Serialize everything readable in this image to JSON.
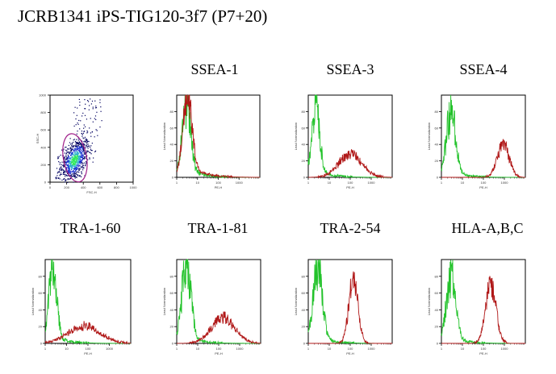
{
  "title": "JCRB1341 iPS-TIG120-3f7 (P7+20)",
  "colors": {
    "control": "#22c22a",
    "stained": "#b01818",
    "gate": "#a0208a",
    "axis": "#000000"
  },
  "chart_data": [
    {
      "type": "scatter",
      "panel": "scatter",
      "title": "",
      "xlabel": "FSC-H",
      "ylabel": "SSC-H",
      "xlim": [
        0,
        1000
      ],
      "ylim": [
        0,
        1000
      ],
      "xticks": [
        "0",
        "200",
        "400",
        "600",
        "800",
        "1000"
      ],
      "yticks": [
        "0",
        "200",
        "400",
        "600",
        "800",
        "1000"
      ],
      "grid": false,
      "center": [
        290,
        260
      ],
      "gate": {
        "center": [
          300,
          280
        ],
        "rx": 140,
        "ry": 280
      }
    },
    {
      "type": "line",
      "panel": "SSEA-1",
      "title": "SSEA-1",
      "scale": "log",
      "xlabel": "PE-H",
      "ylabel": "Lead Normalization",
      "xlim": [
        1,
        10000
      ],
      "ylim": [
        0,
        100
      ],
      "xticks": [
        "1",
        "10",
        "100",
        "1000"
      ],
      "yticks": [
        "0",
        "20",
        "40",
        "60",
        "80"
      ],
      "series": [
        {
          "role": "control",
          "peak_log": 0.45,
          "width": 0.2,
          "height": 88,
          "tail": 0.15
        },
        {
          "role": "stained",
          "peak_log": 0.5,
          "width": 0.22,
          "height": 92,
          "tail": 0.2
        }
      ]
    },
    {
      "type": "line",
      "panel": "SSEA-3",
      "title": "SSEA-3",
      "scale": "log",
      "xlabel": "PE-H",
      "ylabel": "Lead Normalization",
      "xlim": [
        1,
        10000
      ],
      "ylim": [
        0,
        100
      ],
      "xticks": [
        "1",
        "10",
        "100",
        "1000"
      ],
      "yticks": [
        "0",
        "20",
        "40",
        "60",
        "80"
      ],
      "series": [
        {
          "role": "control",
          "peak_log": 0.35,
          "width": 0.18,
          "height": 92,
          "tail": 0.1
        },
        {
          "role": "stained",
          "peak_log": 2.0,
          "width": 0.55,
          "height": 28,
          "tail": 0.05
        }
      ]
    },
    {
      "type": "line",
      "panel": "SSEA-4",
      "title": "SSEA-4",
      "scale": "log",
      "xlabel": "PE-H",
      "ylabel": "Lead Normalization",
      "xlim": [
        1,
        10000
      ],
      "ylim": [
        0,
        100
      ],
      "xticks": [
        "1",
        "10",
        "100",
        "1000"
      ],
      "yticks": [
        "0",
        "20",
        "40",
        "60",
        "80"
      ],
      "series": [
        {
          "role": "control",
          "peak_log": 0.45,
          "width": 0.22,
          "height": 78,
          "tail": 0.1
        },
        {
          "role": "stained",
          "peak_log": 2.95,
          "width": 0.28,
          "height": 40,
          "tail": 0.0
        }
      ]
    },
    {
      "type": "line",
      "panel": "TRA-1-60",
      "title": "TRA-1-60",
      "scale": "log",
      "xlabel": "PE-H",
      "ylabel": "Lead Normalization",
      "xlim": [
        1,
        10000
      ],
      "ylim": [
        0,
        100
      ],
      "xticks": [
        "1",
        "10",
        "100",
        "1000"
      ],
      "yticks": [
        "0",
        "20",
        "40",
        "60",
        "80"
      ],
      "series": [
        {
          "role": "control",
          "peak_log": 0.35,
          "width": 0.18,
          "height": 88,
          "tail": 0.1
        },
        {
          "role": "stained",
          "peak_log": 1.8,
          "width": 0.75,
          "height": 20,
          "tail": 0.1
        }
      ]
    },
    {
      "type": "line",
      "panel": "TRA-1-81",
      "title": "TRA-1-81",
      "scale": "log",
      "xlabel": "PE-H",
      "ylabel": "Lead Normalization",
      "xlim": [
        1,
        10000
      ],
      "ylim": [
        0,
        100
      ],
      "xticks": [
        "1",
        "10",
        "100",
        "1000"
      ],
      "yticks": [
        "0",
        "20",
        "40",
        "60",
        "80"
      ],
      "series": [
        {
          "role": "control",
          "peak_log": 0.45,
          "width": 0.22,
          "height": 90,
          "tail": 0.1
        },
        {
          "role": "stained",
          "peak_log": 2.2,
          "width": 0.55,
          "height": 30,
          "tail": 0.05
        }
      ]
    },
    {
      "type": "line",
      "panel": "TRA-2-54",
      "title": "TRA-2-54",
      "scale": "log",
      "xlabel": "PE-H",
      "ylabel": "Lead Normalization",
      "xlim": [
        1,
        10000
      ],
      "ylim": [
        0,
        100
      ],
      "xticks": [
        "1",
        "10",
        "100",
        "1000"
      ],
      "yticks": [
        "0",
        "20",
        "40",
        "60",
        "80"
      ],
      "series": [
        {
          "role": "control",
          "peak_log": 0.45,
          "width": 0.22,
          "height": 88,
          "tail": 0.1
        },
        {
          "role": "stained",
          "peak_log": 2.15,
          "width": 0.22,
          "height": 75,
          "tail": 0.0
        }
      ]
    },
    {
      "type": "line",
      "panel": "HLA-A,B,C",
      "title": "HLA-A,B,C",
      "scale": "log",
      "xlabel": "PE-H",
      "ylabel": "Lead Normalization",
      "xlim": [
        1,
        10000
      ],
      "ylim": [
        0,
        100
      ],
      "xticks": [
        "1",
        "10",
        "100",
        "1000"
      ],
      "yticks": [
        "0",
        "20",
        "40",
        "60",
        "80"
      ],
      "series": [
        {
          "role": "control",
          "peak_log": 0.45,
          "width": 0.22,
          "height": 80,
          "tail": 0.1
        },
        {
          "role": "stained",
          "peak_log": 2.35,
          "width": 0.25,
          "height": 70,
          "tail": 0.0
        }
      ]
    }
  ]
}
